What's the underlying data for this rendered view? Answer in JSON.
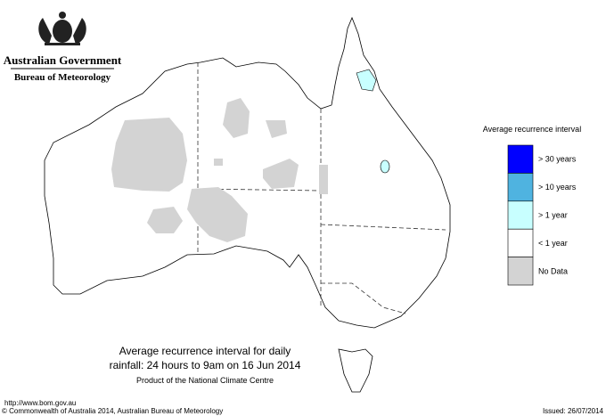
{
  "header": {
    "title": "Australian Government",
    "subtitle": "Bureau of Meteorology"
  },
  "legend": {
    "title": "Average recurrence interval",
    "items": [
      {
        "label": "> 30 years",
        "color": "#0000ff"
      },
      {
        "label": "> 10 years",
        "color": "#4fb3e0"
      },
      {
        "label": "> 1 year",
        "color": "#c8ffff"
      },
      {
        "label": "< 1 year",
        "color": "#ffffff"
      },
      {
        "label": "No Data",
        "color": "#d3d3d3"
      }
    ]
  },
  "caption": {
    "lines": [
      "Average recurrence interval for daily",
      "rainfall: 24 hours to 9am on 16 Jun 2014",
      "Product of the National Climate Centre"
    ]
  },
  "footer": {
    "url": "http://www.bom.gov.au",
    "copyright": "© Commonwealth of Australia 2014, Australian Bureau of Meteorology",
    "issued": "Issued: 26/07/2014"
  }
}
